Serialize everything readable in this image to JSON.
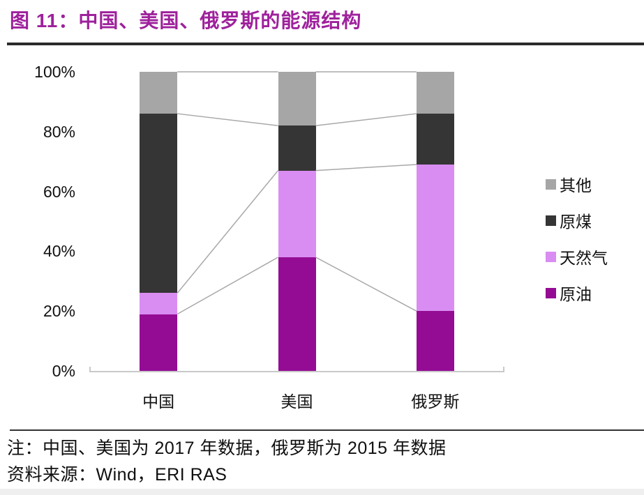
{
  "header": {
    "title": "图 11：中国、美国、俄罗斯的能源结构"
  },
  "notes": {
    "note": "注：中国、美国为 2017 年数据，俄罗斯为 2015 年数据",
    "source": "资料来源：Wind，ERI RAS"
  },
  "colors": {
    "title_accent": "#9e219c",
    "header_rule": "#2b2b2b",
    "note_rule": "#333333"
  },
  "chart_data": {
    "type": "bar",
    "stacked": true,
    "title": "中国、美国、俄罗斯的能源结构",
    "xlabel": "",
    "ylabel": "",
    "categories": [
      "中国",
      "美国",
      "俄罗斯"
    ],
    "category_keys": [
      "china",
      "usa",
      "russia"
    ],
    "series": [
      {
        "name": "原油",
        "key": "crude-oil",
        "color": "#940c94",
        "values": [
          19,
          38,
          20
        ]
      },
      {
        "name": "天然气",
        "key": "natural-gas",
        "color": "#d98df2",
        "values": [
          7,
          29,
          49
        ]
      },
      {
        "name": "原煤",
        "key": "raw-coal",
        "color": "#353535",
        "values": [
          60,
          15,
          17
        ]
      },
      {
        "name": "其他",
        "key": "other",
        "color": "#a6a6a6",
        "values": [
          14,
          18,
          14
        ]
      }
    ],
    "units": "%",
    "ylim": [
      0,
      100
    ],
    "y_ticks": [
      0,
      20,
      40,
      60,
      80,
      100
    ],
    "y_tick_suffix": "%",
    "grid": false,
    "legend_position": "right",
    "legend_order_top_to_bottom": [
      "其他",
      "原煤",
      "天然气",
      "原油"
    ],
    "connector_lines": true,
    "connector_color": "#a8a8a8",
    "baseline_color": "#c9c9c9"
  }
}
